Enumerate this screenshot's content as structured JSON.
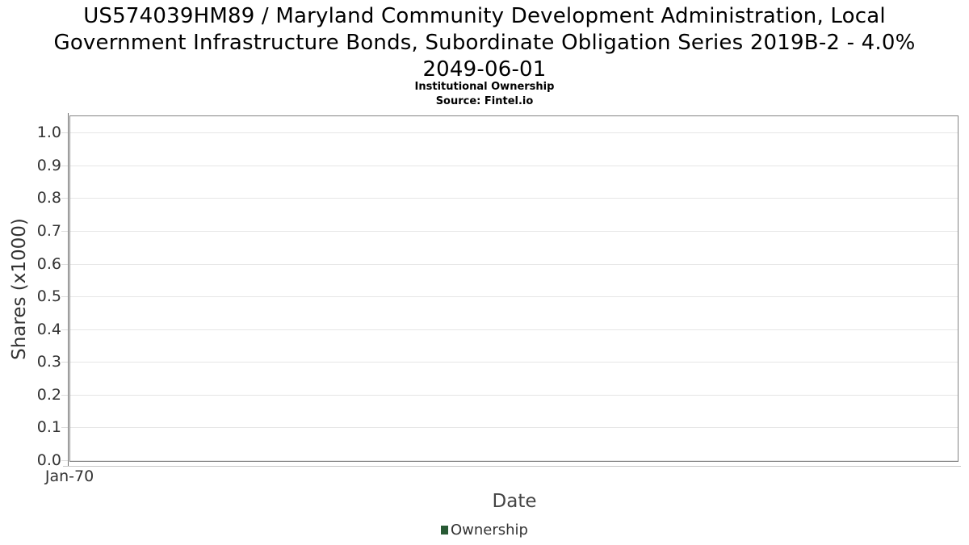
{
  "chart_data": {
    "type": "line",
    "title": "US574039HM89 / Maryland Community Development Administration, Local Government Infrastructure Bonds, Subordinate Obligation Series 2019B-2 - 4.0% 2049-06-01",
    "title_lines": [
      "US574039HM89 / Maryland Community Development Administration, Local",
      "Government Infrastructure Bonds, Subordinate Obligation Series 2019B-2 - 4.0%",
      "2049-06-01"
    ],
    "subtitle": "Institutional Ownership",
    "source": "Source: Fintel.io",
    "xlabel": "Date",
    "ylabel": "Shares (x1000)",
    "x_ticks": [
      "Jan-70"
    ],
    "y_ticks": [
      0.0,
      0.1,
      0.2,
      0.3,
      0.4,
      0.5,
      0.6,
      0.7,
      0.8,
      0.9,
      1.0
    ],
    "ylim": [
      0,
      1.05
    ],
    "grid": true,
    "legend_position": "bottom-center",
    "legend": [
      {
        "label": "Ownership",
        "color": "#285a34"
      }
    ],
    "series": [
      {
        "name": "Ownership",
        "x": [],
        "values": []
      }
    ],
    "colors": {
      "grid": "#e6e6e6",
      "plot_border": "#848484",
      "y_axis_line": "#6e6e6e",
      "x_axis_line": "#c6c6c6",
      "tick_label": "#333333",
      "title": "#000000"
    }
  }
}
